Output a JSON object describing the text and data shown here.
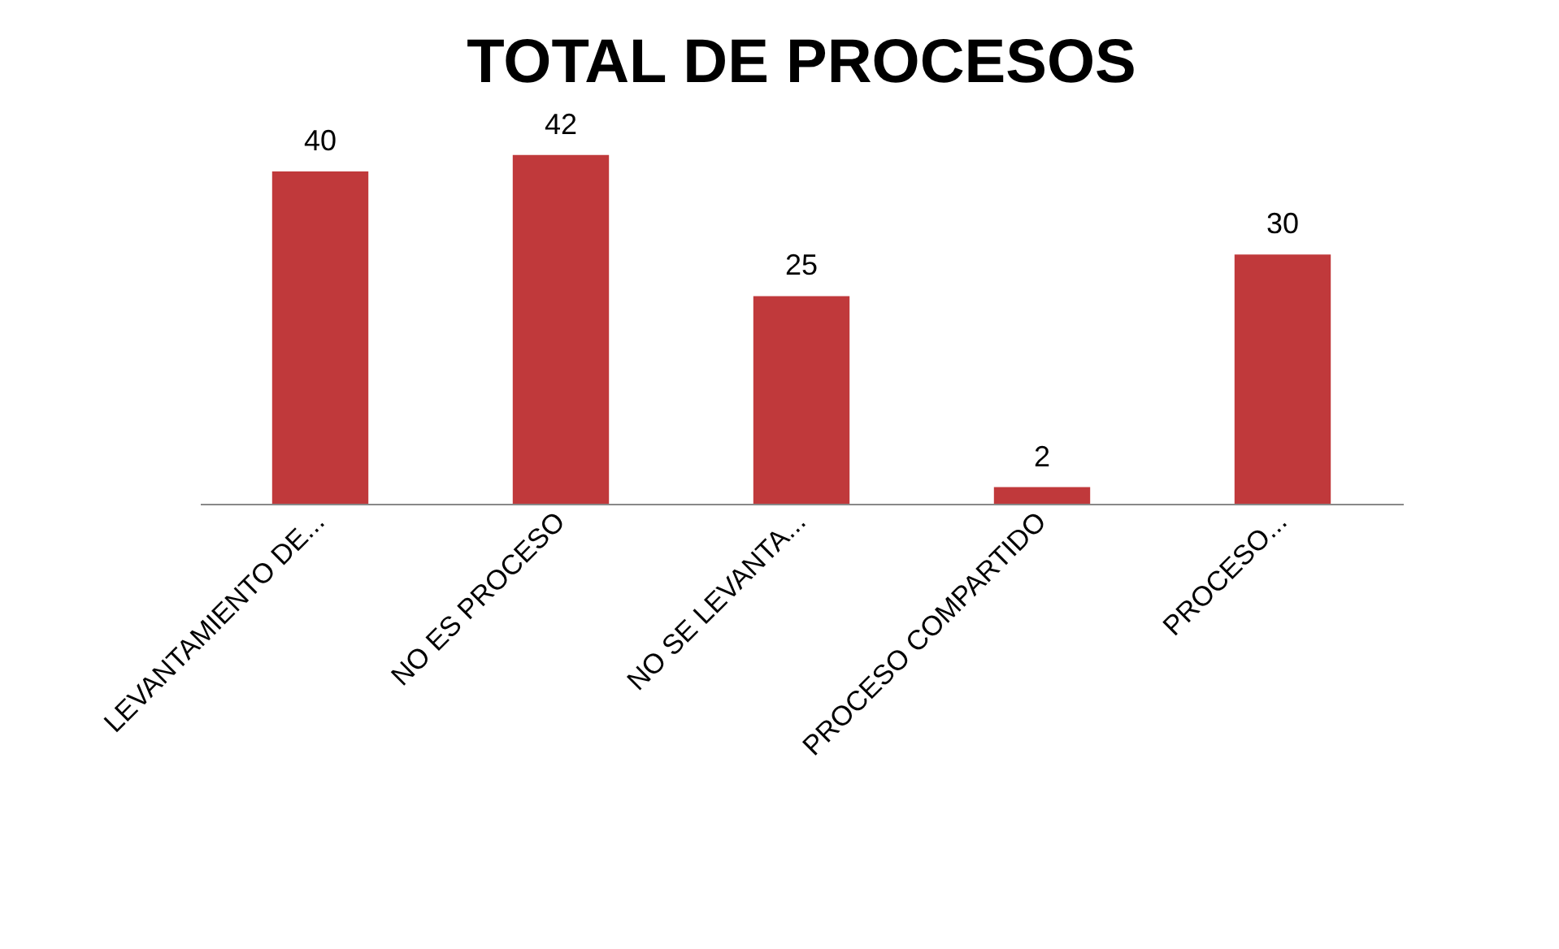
{
  "chart_data": {
    "type": "bar",
    "title": "TOTAL DE PROCESOS",
    "categories": [
      "LEVANTAMIENTO DE...",
      "NO ES PROCESO",
      "NO SE LEVANTA...",
      "PROCESO COMPARTIDO",
      "PROCESO..."
    ],
    "values": [
      40,
      42,
      25,
      2,
      30
    ],
    "color": "#c0393b",
    "data_labels": true
  }
}
